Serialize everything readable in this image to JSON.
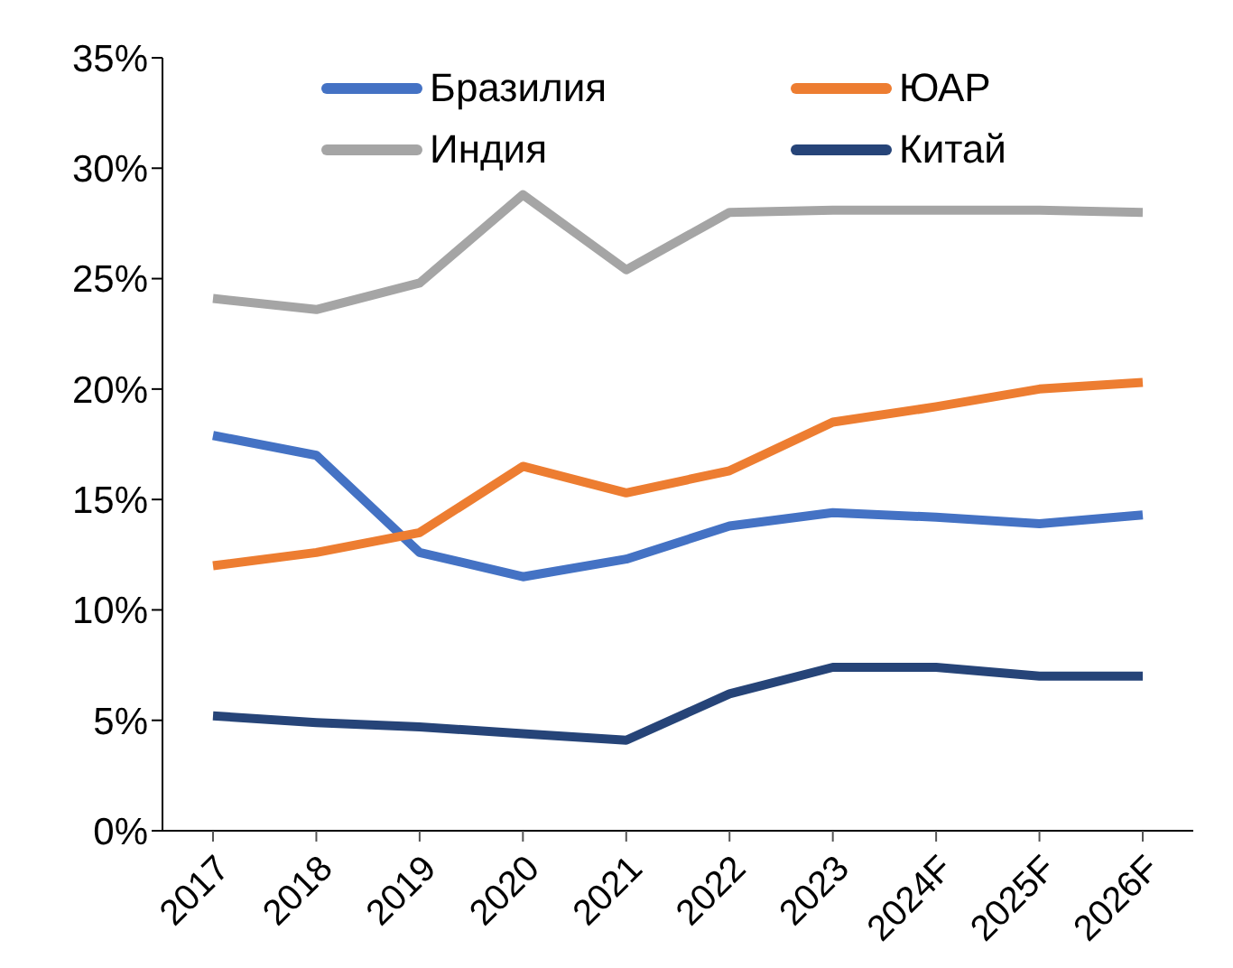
{
  "chart_data": {
    "type": "line",
    "categories": [
      "2017",
      "2018",
      "2019",
      "2020",
      "2021",
      "2022",
      "2023",
      "2024F",
      "2025F",
      "2026F"
    ],
    "series": [
      {
        "name": "Бразилия",
        "color": "#4472c4",
        "values": [
          17.9,
          17.0,
          12.6,
          11.5,
          12.3,
          13.8,
          14.4,
          14.2,
          13.9,
          14.3
        ]
      },
      {
        "name": "ЮАР",
        "color": "#ed7d31",
        "values": [
          12.0,
          12.6,
          13.5,
          16.5,
          15.3,
          16.3,
          18.5,
          19.2,
          20.0,
          20.3
        ]
      },
      {
        "name": "Индия",
        "color": "#a5a5a5",
        "values": [
          24.1,
          23.6,
          24.8,
          28.8,
          25.4,
          28.0,
          28.1,
          28.1,
          28.1,
          28.0
        ]
      },
      {
        "name": "Китай",
        "color": "#264478",
        "values": [
          5.2,
          4.9,
          4.7,
          4.4,
          4.1,
          6.2,
          7.4,
          7.4,
          7.0,
          7.0
        ]
      }
    ],
    "ylim": [
      0,
      35
    ],
    "yticks": [
      {
        "value": 0,
        "label": "0%"
      },
      {
        "value": 5,
        "label": "5%"
      },
      {
        "value": 10,
        "label": "10%"
      },
      {
        "value": 15,
        "label": "15%"
      },
      {
        "value": 20,
        "label": "20%"
      },
      {
        "value": 25,
        "label": "25%"
      },
      {
        "value": 30,
        "label": "30%"
      },
      {
        "value": 35,
        "label": "35%"
      }
    ],
    "grid": false,
    "legend": "top",
    "marker": "none",
    "line_style": "solid"
  }
}
